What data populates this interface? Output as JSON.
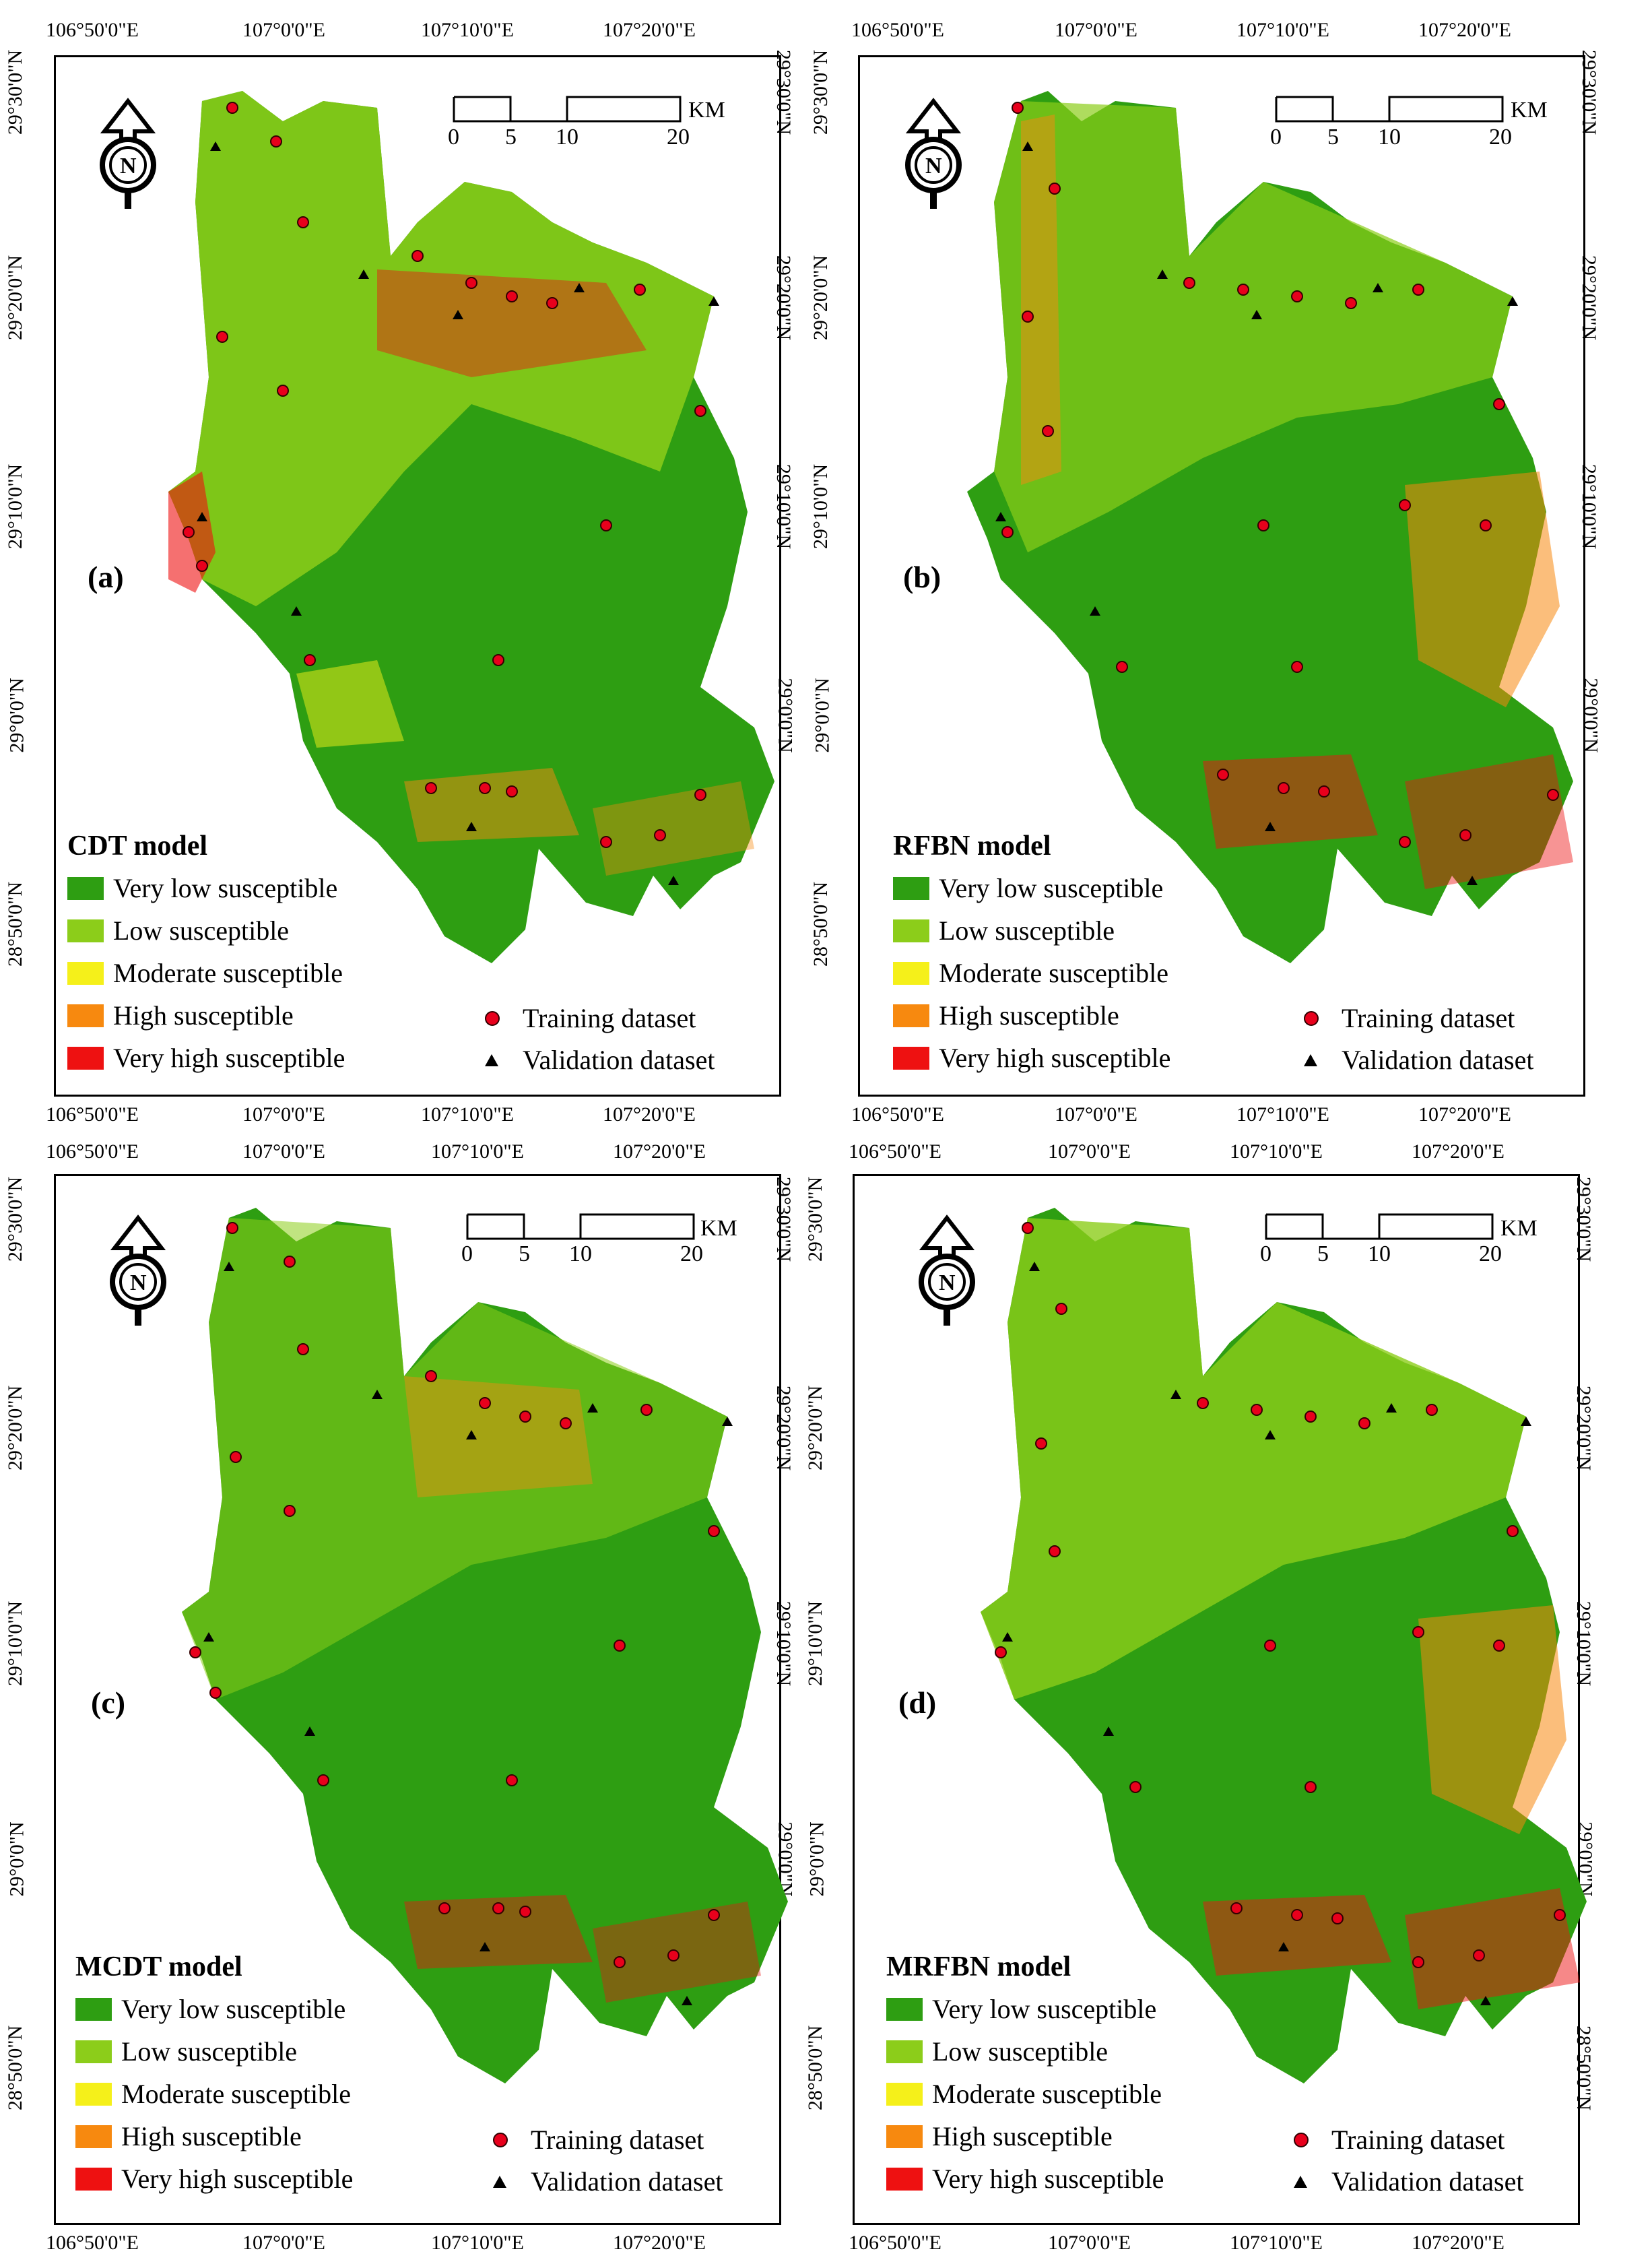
{
  "longitude_labels": [
    "106°50'0\"E",
    "107°0'0\"E",
    "107°10'0\"E",
    "107°20'0\"E"
  ],
  "latitude_labels": [
    "29°30'0\"N",
    "29°20'0\"N",
    "29°10'0\"N",
    "29°0'0\"N",
    "28°50'0\"N"
  ],
  "scale": {
    "ticks": [
      "0",
      "5",
      "10",
      "20"
    ],
    "unit": "KM"
  },
  "north_arrow": {
    "letter": "N",
    "icon": "north-arrow-icon"
  },
  "legend_classes": [
    {
      "label": "Very low susceptible",
      "color": "#2e9e12"
    },
    {
      "label": "Low susceptible",
      "color": "#8ccd1a"
    },
    {
      "label": "Moderate susceptible",
      "color": "#f5f01a"
    },
    {
      "label": "High susceptible",
      "color": "#f7890f"
    },
    {
      "label": "Very high susceptible",
      "color": "#ee1111"
    }
  ],
  "symbols": {
    "training": "Training dataset",
    "validation": "Validation dataset",
    "training_color": "#e8001c",
    "validation_color": "#000000"
  },
  "panels": [
    {
      "letter": "(a)",
      "model": "CDT model"
    },
    {
      "letter": "(b)",
      "model": "RFBN model"
    },
    {
      "letter": "(c)",
      "model": "MCDT model"
    },
    {
      "letter": "(d)",
      "model": "MRFBN model"
    }
  ]
}
